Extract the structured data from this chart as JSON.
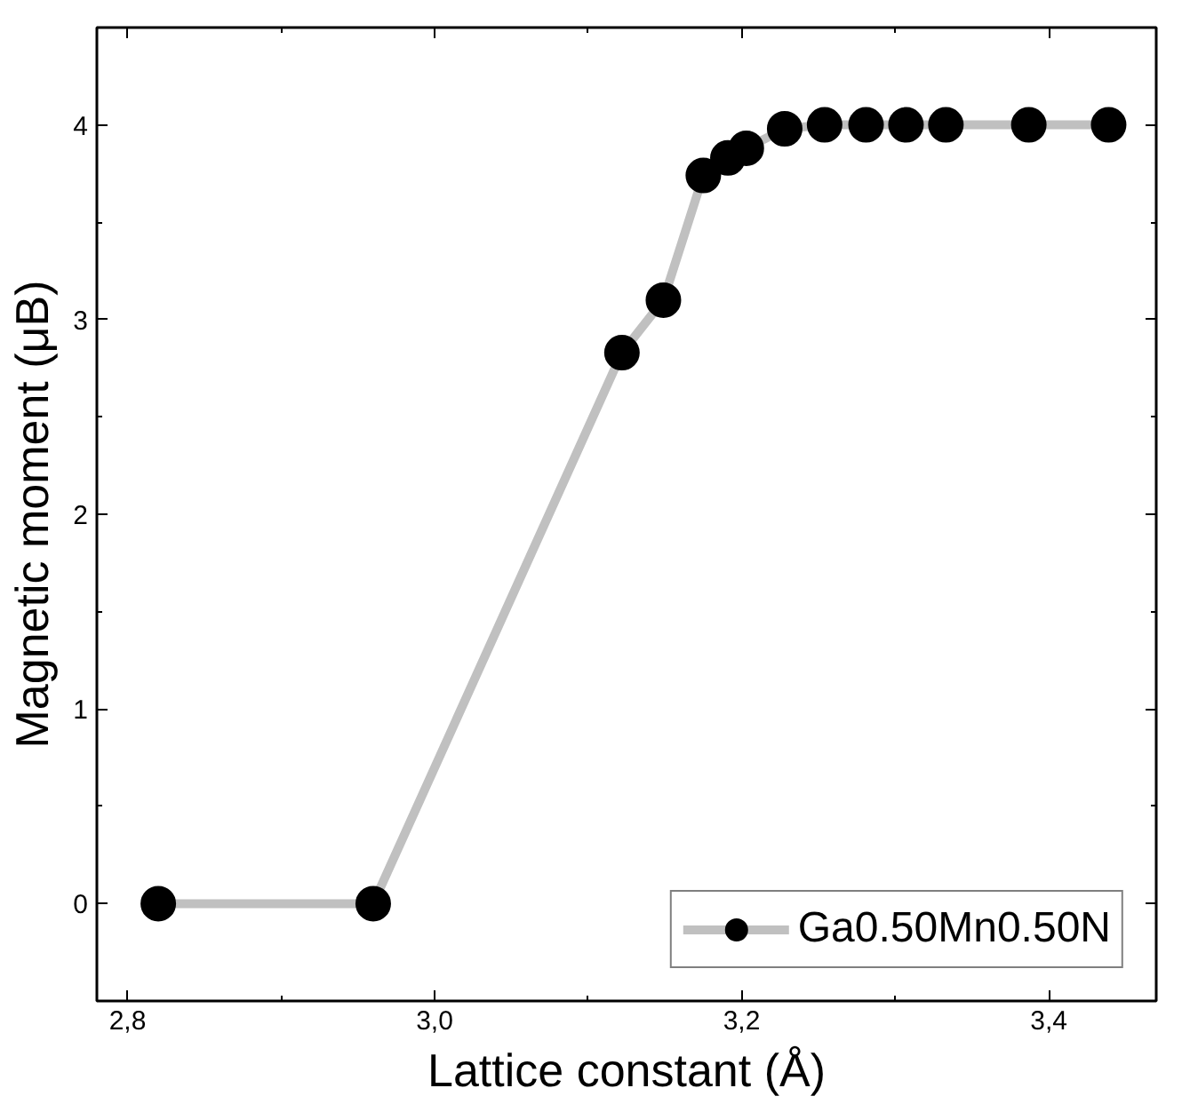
{
  "chart_data": {
    "type": "line",
    "xlabel": "Lattice constant (Å)",
    "ylabel": "Magnetic moment (μB)",
    "x": [
      2.82,
      2.96,
      3.122,
      3.149,
      3.175,
      3.191,
      3.203,
      3.228,
      3.254,
      3.281,
      3.307,
      3.333,
      3.387,
      3.439
    ],
    "series": [
      {
        "name": "Ga0.50Mn0.50N",
        "color": "#000000",
        "values": [
          0,
          0,
          2.83,
          3.1,
          3.74,
          3.83,
          3.88,
          3.98,
          4.0,
          4.0,
          4.0,
          4.0,
          4.0,
          4.0
        ]
      }
    ],
    "xlim": [
      2.78,
      3.47
    ],
    "xticks": [
      {
        "value": 2.8,
        "label": "2,8"
      },
      {
        "value": 3.0,
        "label": "3,0"
      },
      {
        "value": 3.2,
        "label": "3,2"
      },
      {
        "value": 3.4,
        "label": "3,4"
      }
    ],
    "ylim": [
      -0.5,
      4.5
    ],
    "yticks": [
      0,
      1,
      2,
      3,
      4
    ],
    "marker": "circle",
    "line_style": "solid",
    "legend": "bottom right",
    "grid": false
  }
}
